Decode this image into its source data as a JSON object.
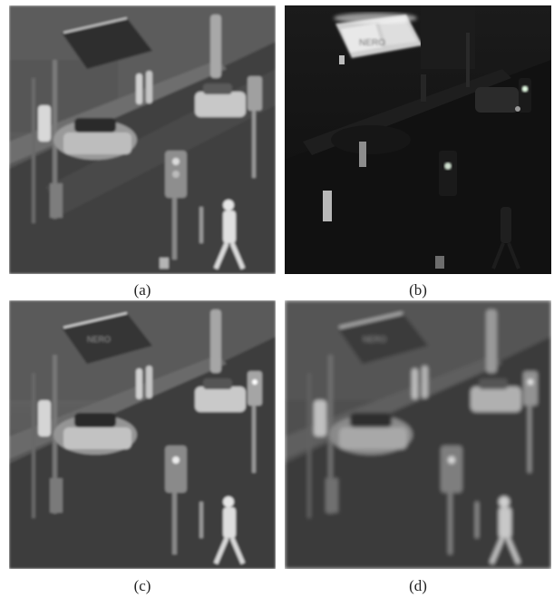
{
  "panels": [
    {
      "id": "a",
      "caption": "(a)",
      "kind": "thermal-infrared street scene",
      "tone": "bright"
    },
    {
      "id": "b",
      "caption": "(b)",
      "kind": "visible-light night street scene",
      "tone": "dark"
    },
    {
      "id": "c",
      "caption": "(c)",
      "kind": "fused street scene",
      "tone": "bright"
    },
    {
      "id": "d",
      "caption": "(d)",
      "kind": "fused street scene",
      "tone": "soft"
    }
  ]
}
